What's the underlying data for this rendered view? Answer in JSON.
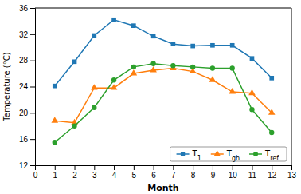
{
  "chart_data": {
    "type": "line",
    "x": [
      1,
      2,
      3,
      4,
      5,
      6,
      7,
      8,
      9,
      10,
      11,
      12
    ],
    "series": [
      {
        "name": "T1",
        "marker": "square",
        "values": [
          24.1,
          27.8,
          31.8,
          34.2,
          33.3,
          31.7,
          30.5,
          30.2,
          30.3,
          30.3,
          28.3,
          25.3
        ]
      },
      {
        "name": "Tgh",
        "marker": "triangle",
        "values": [
          18.8,
          18.5,
          23.8,
          23.8,
          26.0,
          26.5,
          26.8,
          26.3,
          25.0,
          23.2,
          23.0,
          20.0
        ]
      },
      {
        "name": "Tref",
        "marker": "circle",
        "values": [
          15.5,
          18.0,
          20.8,
          25.0,
          27.0,
          27.5,
          27.2,
          27.0,
          26.8,
          26.8,
          20.5,
          17.0
        ]
      }
    ],
    "xlabel": "Month",
    "ylabel": "Temperature (°C)",
    "xlim": [
      0,
      13
    ],
    "ylim": [
      12,
      36
    ],
    "xticks": [
      0,
      1,
      2,
      3,
      4,
      5,
      6,
      7,
      8,
      9,
      10,
      11,
      12,
      13
    ],
    "yticks": [
      12,
      16,
      20,
      24,
      28,
      32,
      36
    ],
    "grid": false,
    "legend": "lower right"
  }
}
